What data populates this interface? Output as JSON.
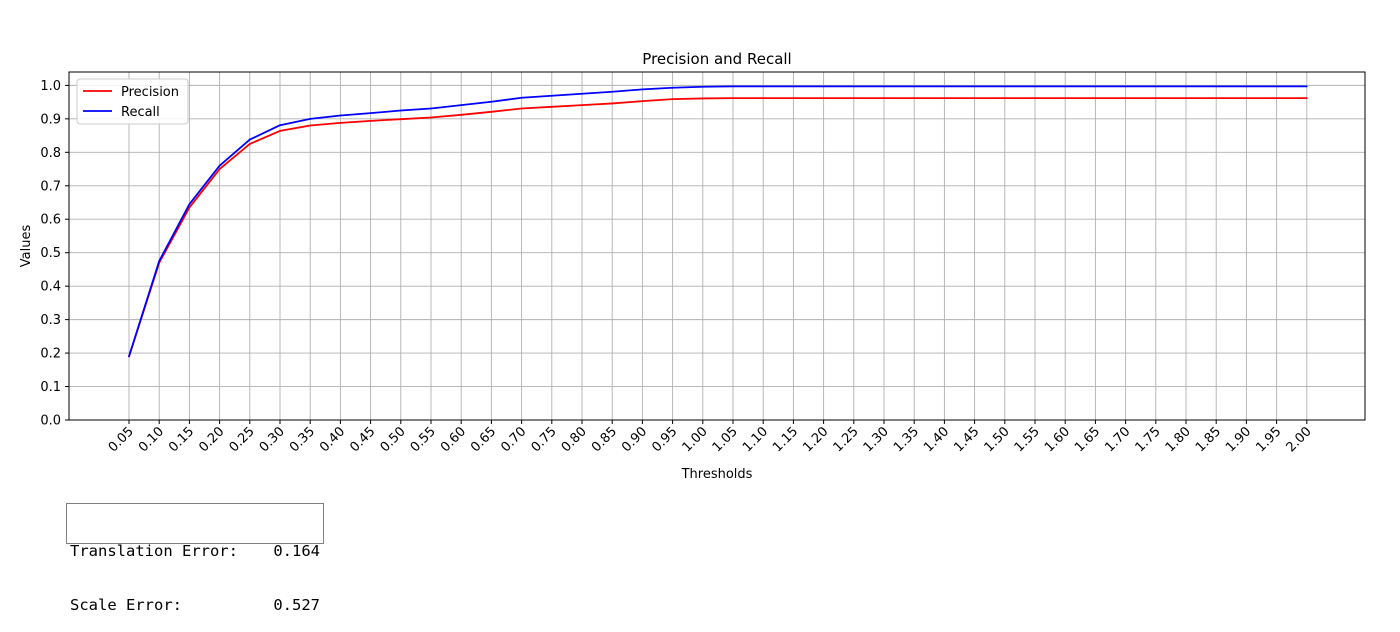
{
  "chart_data": {
    "type": "line",
    "title": "Precision and Recall",
    "xlabel": "Thresholds",
    "ylabel": "Values",
    "x": [
      0.05,
      0.1,
      0.15,
      0.2,
      0.25,
      0.3,
      0.35,
      0.4,
      0.45,
      0.5,
      0.55,
      0.6,
      0.65,
      0.7,
      0.75,
      0.8,
      0.85,
      0.9,
      0.95,
      1.0,
      1.05,
      1.1,
      1.15,
      1.2,
      1.25,
      1.3,
      1.35,
      1.4,
      1.45,
      1.5,
      1.55,
      1.6,
      1.65,
      1.7,
      1.75,
      1.8,
      1.85,
      1.9,
      1.95,
      2.0
    ],
    "x_tick_labels": [
      "0.05",
      "0.10",
      "0.15",
      "0.20",
      "0.25",
      "0.30",
      "0.35",
      "0.40",
      "0.45",
      "0.50",
      "0.55",
      "0.60",
      "0.65",
      "0.70",
      "0.75",
      "0.80",
      "0.85",
      "0.90",
      "0.95",
      "1.00",
      "1.05",
      "1.10",
      "1.15",
      "1.20",
      "1.25",
      "1.30",
      "1.35",
      "1.40",
      "1.45",
      "1.50",
      "1.55",
      "1.60",
      "1.65",
      "1.70",
      "1.75",
      "1.80",
      "1.85",
      "1.90",
      "1.95",
      "2.00"
    ],
    "ylim": [
      0,
      1.04
    ],
    "y_ticks": [
      0.0,
      0.1,
      0.2,
      0.3,
      0.4,
      0.5,
      0.6,
      0.7,
      0.8,
      0.9,
      1.0
    ],
    "y_tick_labels": [
      "0.0",
      "0.1",
      "0.2",
      "0.3",
      "0.4",
      "0.5",
      "0.6",
      "0.7",
      "0.8",
      "0.9",
      "1.0"
    ],
    "grid": true,
    "legend_position": "top-left",
    "series": [
      {
        "name": "Precision",
        "color": "#ff0000",
        "values": [
          0.19,
          0.47,
          0.635,
          0.75,
          0.825,
          0.864,
          0.88,
          0.888,
          0.894,
          0.899,
          0.904,
          0.912,
          0.921,
          0.931,
          0.936,
          0.941,
          0.946,
          0.953,
          0.959,
          0.961,
          0.962,
          0.962,
          0.962,
          0.962,
          0.962,
          0.962,
          0.962,
          0.962,
          0.962,
          0.962,
          0.962,
          0.962,
          0.962,
          0.962,
          0.962,
          0.962,
          0.962,
          0.962,
          0.962,
          0.962
        ]
      },
      {
        "name": "Recall",
        "color": "#0000ff",
        "values": [
          0.19,
          0.475,
          0.645,
          0.76,
          0.838,
          0.881,
          0.9,
          0.91,
          0.917,
          0.925,
          0.931,
          0.941,
          0.951,
          0.963,
          0.969,
          0.975,
          0.981,
          0.988,
          0.993,
          0.996,
          0.997,
          0.997,
          0.997,
          0.997,
          0.997,
          0.997,
          0.997,
          0.997,
          0.997,
          0.997,
          0.997,
          0.997,
          0.997,
          0.997,
          0.997,
          0.997,
          0.997,
          0.997,
          0.997,
          0.997
        ]
      }
    ]
  },
  "error_box": {
    "translation_label": "Translation Error:",
    "translation_value": "0.164",
    "scale_label": "Scale Error:",
    "scale_value": "0.527"
  }
}
